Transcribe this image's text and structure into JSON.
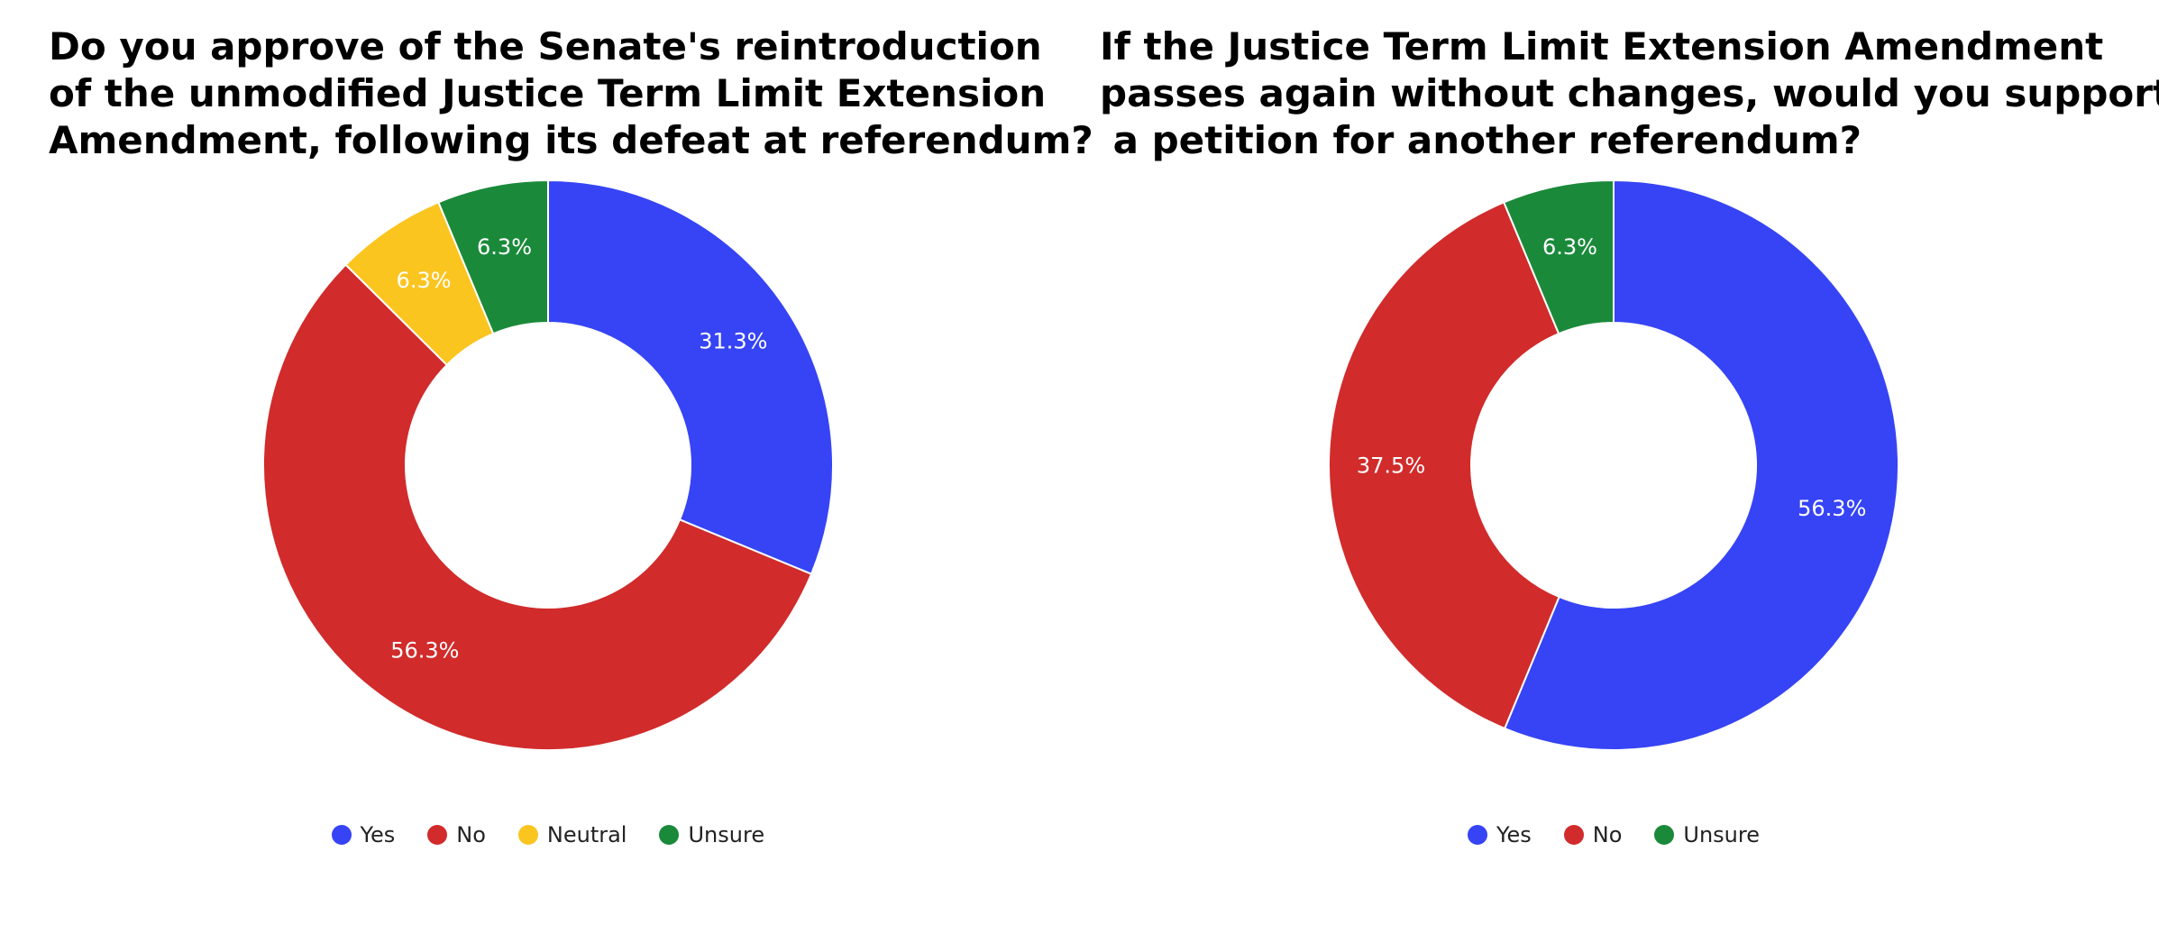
{
  "chart_data": [
    {
      "type": "pie",
      "donut": true,
      "title": "Do you approve of the Senate's reintroduction\nof the unmodified Justice Term Limit Extension\nAmendment, following its defeat at referendum?",
      "legend_position": "bottom",
      "series": [
        {
          "name": "Yes",
          "value": 31.3,
          "label": "31.3%",
          "color": "#3644f5"
        },
        {
          "name": "No",
          "value": 56.3,
          "label": "56.3%",
          "color": "#d12b2b"
        },
        {
          "name": "Neutral",
          "value": 6.3,
          "label": "6.3%",
          "color": "#fbc520"
        },
        {
          "name": "Unsure",
          "value": 6.3,
          "label": "6.3%",
          "color": "#1a8a3a"
        }
      ]
    },
    {
      "type": "pie",
      "donut": true,
      "title": "If the Justice Term Limit Extension Amendment\npasses again without changes, would you support\n a petition for another referendum?",
      "legend_position": "bottom",
      "series": [
        {
          "name": "Yes",
          "value": 56.3,
          "label": "56.3%",
          "color": "#3644f5"
        },
        {
          "name": "No",
          "value": 37.5,
          "label": "37.5%",
          "color": "#d12b2b"
        },
        {
          "name": "Unsure",
          "value": 6.3,
          "label": "6.3%",
          "color": "#1a8a3a"
        }
      ]
    }
  ]
}
